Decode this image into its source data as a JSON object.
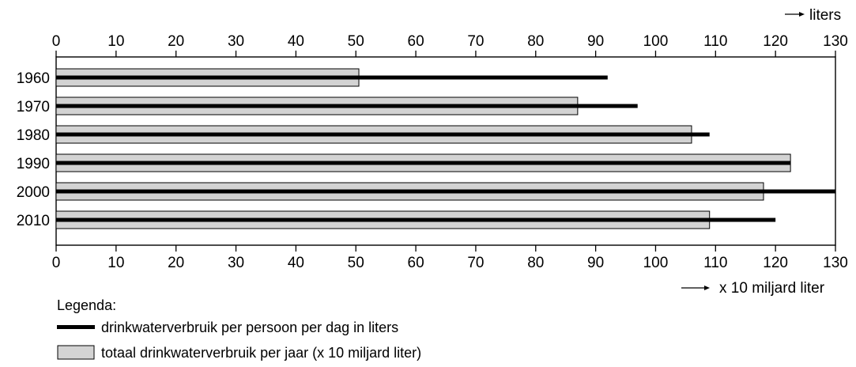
{
  "chart_data": {
    "type": "bar",
    "categories": [
      "1960",
      "1970",
      "1980",
      "1990",
      "2000",
      "2010"
    ],
    "series": [
      {
        "name": "totaal drinkwaterverbruik per jaar (x 10 miljard liter)",
        "values": [
          50.5,
          87,
          106,
          122.5,
          118,
          109
        ],
        "axis": "bottom",
        "style": "grey-bar",
        "color": "#d3d3d3"
      },
      {
        "name": "drinkwaterverbruik per persoon per dag in liters",
        "values": [
          92,
          97,
          109,
          122.5,
          130,
          120
        ],
        "axis": "top",
        "style": "black-line",
        "color": "#000000"
      }
    ],
    "xlim": [
      0,
      130
    ],
    "ticks": [
      "0",
      "10",
      "20",
      "30",
      "40",
      "50",
      "60",
      "70",
      "80",
      "90",
      "100",
      "110",
      "120",
      "130"
    ],
    "top_axis_unit": "liters",
    "bottom_axis_unit": "x 10 miljard liter",
    "orientation": "horizontal",
    "grid": false
  },
  "legend": {
    "title": "Legenda:",
    "line_label": "drinkwaterverbruik per persoon per dag in liters",
    "bar_label": "totaal drinkwaterverbruik per jaar (x 10 miljard liter)"
  }
}
